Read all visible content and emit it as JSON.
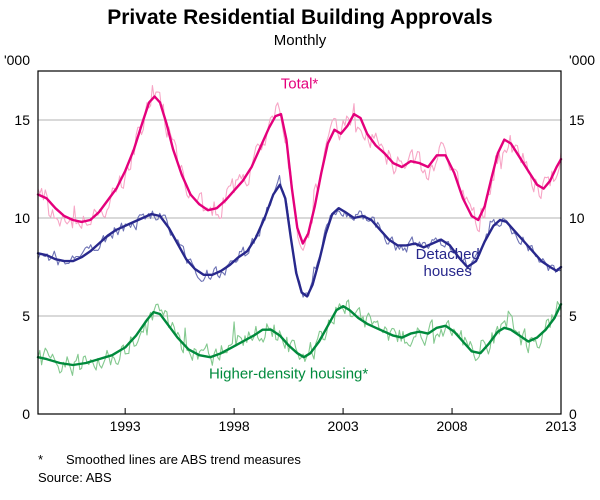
{
  "title": "Private Residential Building Approvals",
  "subtitle": "Monthly",
  "footnote_marker": "*",
  "footnote_text": "Smoothed lines are ABS trend measures",
  "source_text": "Source: ABS",
  "chart_data": {
    "type": "line",
    "title": "Private Residential Building Approvals",
    "subtitle": "Monthly",
    "y_unit": "'000",
    "x_domain": [
      1989,
      2013
    ],
    "x_ticks": [
      1993,
      1998,
      2003,
      2008,
      2013
    ],
    "y_domain": [
      0,
      17.5
    ],
    "y_ticks": [
      0,
      5,
      10,
      15
    ],
    "grid_y": [
      5,
      10,
      15
    ],
    "axis_color": "#000000",
    "grid_color": "#b3b3b3",
    "note": "Each series has a noisy monthly line and a smoothed ABS trend line",
    "series": [
      {
        "name": "total",
        "label": {
          "lines": [
            "Total*"
          ],
          "x": 2001.0,
          "y": 16.6
        },
        "trend_color": "#e4007c",
        "monthly_color": "#f7a6c6",
        "noise": 0.55,
        "trend_points": [
          [
            1989.0,
            11.2
          ],
          [
            1989.4,
            11.0
          ],
          [
            1989.8,
            10.5
          ],
          [
            1990.2,
            10.1
          ],
          [
            1990.6,
            9.9
          ],
          [
            1991.0,
            9.8
          ],
          [
            1991.4,
            9.9
          ],
          [
            1991.8,
            10.3
          ],
          [
            1992.2,
            10.9
          ],
          [
            1992.6,
            11.5
          ],
          [
            1993.0,
            12.4
          ],
          [
            1993.4,
            13.5
          ],
          [
            1993.8,
            14.9
          ],
          [
            1994.1,
            15.9
          ],
          [
            1994.35,
            16.2
          ],
          [
            1994.6,
            15.9
          ],
          [
            1994.9,
            14.8
          ],
          [
            1995.2,
            13.5
          ],
          [
            1995.6,
            12.2
          ],
          [
            1996.0,
            11.2
          ],
          [
            1996.4,
            10.7
          ],
          [
            1996.8,
            10.4
          ],
          [
            1997.2,
            10.5
          ],
          [
            1997.6,
            10.9
          ],
          [
            1998.0,
            11.4
          ],
          [
            1998.4,
            11.9
          ],
          [
            1998.8,
            12.6
          ],
          [
            1999.2,
            13.6
          ],
          [
            1999.6,
            14.6
          ],
          [
            1999.9,
            15.2
          ],
          [
            2000.15,
            15.3
          ],
          [
            2000.4,
            14.0
          ],
          [
            2000.65,
            11.5
          ],
          [
            2000.9,
            9.5
          ],
          [
            2001.15,
            8.7
          ],
          [
            2001.4,
            9.2
          ],
          [
            2001.7,
            10.6
          ],
          [
            2002.0,
            12.3
          ],
          [
            2002.3,
            13.8
          ],
          [
            2002.6,
            14.5
          ],
          [
            2002.9,
            14.3
          ],
          [
            2003.2,
            14.7
          ],
          [
            2003.5,
            15.3
          ],
          [
            2003.8,
            15.1
          ],
          [
            2004.1,
            14.3
          ],
          [
            2004.5,
            13.7
          ],
          [
            2004.9,
            13.3
          ],
          [
            2005.3,
            12.8
          ],
          [
            2005.7,
            12.6
          ],
          [
            2006.1,
            12.9
          ],
          [
            2006.5,
            12.8
          ],
          [
            2006.9,
            12.6
          ],
          [
            2007.3,
            13.2
          ],
          [
            2007.7,
            13.2
          ],
          [
            2008.1,
            12.3
          ],
          [
            2008.5,
            11.0
          ],
          [
            2008.9,
            10.1
          ],
          [
            2009.2,
            9.9
          ],
          [
            2009.5,
            10.6
          ],
          [
            2009.8,
            12.0
          ],
          [
            2010.1,
            13.3
          ],
          [
            2010.4,
            14.0
          ],
          [
            2010.7,
            13.8
          ],
          [
            2011.1,
            13.1
          ],
          [
            2011.5,
            12.4
          ],
          [
            2011.9,
            11.7
          ],
          [
            2012.2,
            11.5
          ],
          [
            2012.5,
            11.9
          ],
          [
            2012.8,
            12.6
          ],
          [
            2013.0,
            13.0
          ]
        ]
      },
      {
        "name": "detached-houses",
        "label": {
          "lines": [
            "Detached",
            "houses"
          ],
          "x": 2007.8,
          "y": 7.9
        },
        "trend_color": "#28288c",
        "monthly_color": "#6d72b4",
        "noise": 0.3,
        "trend_points": [
          [
            1989.0,
            8.2
          ],
          [
            1989.4,
            8.1
          ],
          [
            1989.8,
            7.9
          ],
          [
            1990.2,
            7.8
          ],
          [
            1990.6,
            7.8
          ],
          [
            1991.0,
            8.0
          ],
          [
            1991.4,
            8.3
          ],
          [
            1991.8,
            8.7
          ],
          [
            1992.2,
            9.1
          ],
          [
            1992.6,
            9.4
          ],
          [
            1993.0,
            9.6
          ],
          [
            1993.4,
            9.8
          ],
          [
            1993.8,
            10.0
          ],
          [
            1994.2,
            10.2
          ],
          [
            1994.6,
            10.1
          ],
          [
            1995.0,
            9.5
          ],
          [
            1995.4,
            8.7
          ],
          [
            1995.8,
            7.9
          ],
          [
            1996.2,
            7.4
          ],
          [
            1996.6,
            7.1
          ],
          [
            1997.0,
            7.1
          ],
          [
            1997.4,
            7.3
          ],
          [
            1997.8,
            7.6
          ],
          [
            1998.2,
            8.0
          ],
          [
            1998.6,
            8.3
          ],
          [
            1999.0,
            9.0
          ],
          [
            1999.4,
            10.0
          ],
          [
            1999.8,
            11.2
          ],
          [
            2000.1,
            11.7
          ],
          [
            2000.35,
            11.0
          ],
          [
            2000.6,
            9.0
          ],
          [
            2000.85,
            7.2
          ],
          [
            2001.1,
            6.2
          ],
          [
            2001.35,
            6.0
          ],
          [
            2001.6,
            6.6
          ],
          [
            2001.9,
            7.8
          ],
          [
            2002.2,
            9.2
          ],
          [
            2002.5,
            10.2
          ],
          [
            2002.8,
            10.5
          ],
          [
            2003.1,
            10.3
          ],
          [
            2003.5,
            10.0
          ],
          [
            2003.9,
            10.1
          ],
          [
            2004.3,
            9.9
          ],
          [
            2004.7,
            9.4
          ],
          [
            2005.1,
            8.9
          ],
          [
            2005.5,
            8.6
          ],
          [
            2005.9,
            8.6
          ],
          [
            2006.3,
            8.7
          ],
          [
            2006.7,
            8.5
          ],
          [
            2007.1,
            8.7
          ],
          [
            2007.5,
            8.9
          ],
          [
            2007.9,
            8.6
          ],
          [
            2008.3,
            8.0
          ],
          [
            2008.7,
            7.5
          ],
          [
            2009.1,
            7.8
          ],
          [
            2009.5,
            8.8
          ],
          [
            2009.9,
            9.6
          ],
          [
            2010.2,
            9.9
          ],
          [
            2010.5,
            9.8
          ],
          [
            2010.9,
            9.3
          ],
          [
            2011.3,
            8.8
          ],
          [
            2011.7,
            8.3
          ],
          [
            2012.1,
            7.8
          ],
          [
            2012.5,
            7.5
          ],
          [
            2012.8,
            7.3
          ],
          [
            2013.0,
            7.5
          ]
        ]
      },
      {
        "name": "higher-density-housing",
        "label": {
          "lines": [
            "Higher-density housing*"
          ],
          "x": 2000.5,
          "y": 1.8
        },
        "trend_color": "#008a3c",
        "monthly_color": "#84c98f",
        "noise": 0.5,
        "trend_points": [
          [
            1989.0,
            2.9
          ],
          [
            1989.4,
            2.8
          ],
          [
            1990.0,
            2.6
          ],
          [
            1990.6,
            2.5
          ],
          [
            1991.2,
            2.6
          ],
          [
            1991.8,
            2.8
          ],
          [
            1992.4,
            3.0
          ],
          [
            1993.0,
            3.4
          ],
          [
            1993.5,
            4.0
          ],
          [
            1994.0,
            4.8
          ],
          [
            1994.3,
            5.2
          ],
          [
            1994.6,
            5.1
          ],
          [
            1995.0,
            4.5
          ],
          [
            1995.4,
            3.9
          ],
          [
            1995.9,
            3.3
          ],
          [
            1996.4,
            3.0
          ],
          [
            1996.9,
            2.9
          ],
          [
            1997.4,
            3.1
          ],
          [
            1997.9,
            3.4
          ],
          [
            1998.4,
            3.7
          ],
          [
            1998.9,
            4.0
          ],
          [
            1999.3,
            4.3
          ],
          [
            1999.7,
            4.3
          ],
          [
            2000.1,
            4.0
          ],
          [
            2000.5,
            3.5
          ],
          [
            2000.9,
            3.1
          ],
          [
            2001.2,
            2.9
          ],
          [
            2001.5,
            3.1
          ],
          [
            2001.9,
            3.7
          ],
          [
            2002.3,
            4.5
          ],
          [
            2002.7,
            5.3
          ],
          [
            2003.0,
            5.5
          ],
          [
            2003.3,
            5.3
          ],
          [
            2003.7,
            4.9
          ],
          [
            2004.1,
            4.6
          ],
          [
            2004.5,
            4.4
          ],
          [
            2004.9,
            4.2
          ],
          [
            2005.3,
            4.0
          ],
          [
            2005.7,
            3.9
          ],
          [
            2006.1,
            4.1
          ],
          [
            2006.5,
            4.2
          ],
          [
            2006.9,
            4.1
          ],
          [
            2007.3,
            4.4
          ],
          [
            2007.7,
            4.5
          ],
          [
            2008.1,
            4.2
          ],
          [
            2008.5,
            3.7
          ],
          [
            2008.9,
            3.2
          ],
          [
            2009.3,
            3.1
          ],
          [
            2009.7,
            3.6
          ],
          [
            2010.1,
            4.2
          ],
          [
            2010.4,
            4.4
          ],
          [
            2010.7,
            4.3
          ],
          [
            2011.1,
            4.0
          ],
          [
            2011.5,
            3.7
          ],
          [
            2011.9,
            3.9
          ],
          [
            2012.3,
            4.3
          ],
          [
            2012.7,
            4.9
          ],
          [
            2013.0,
            5.6
          ]
        ]
      }
    ]
  }
}
